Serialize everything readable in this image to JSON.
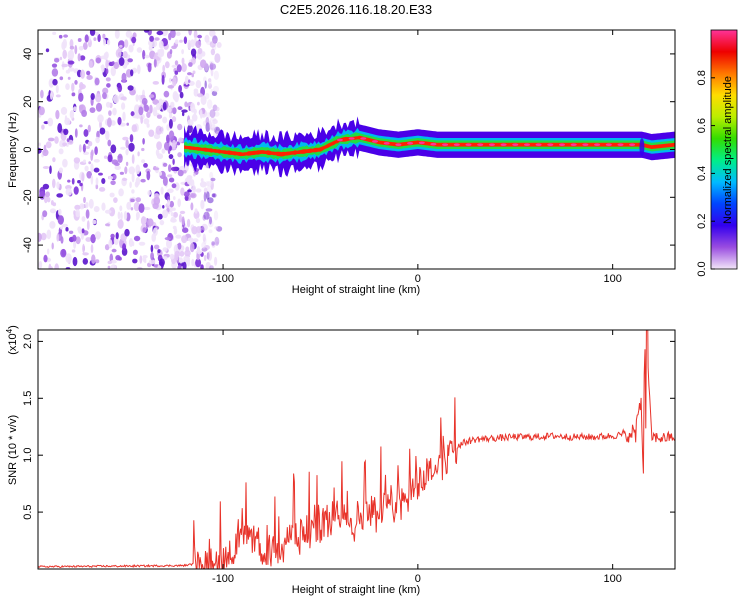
{
  "title": "C2E5.2026.116.18.20.E33",
  "chart_data": [
    {
      "type": "heatmap",
      "name": "spectrogram",
      "xlabel": "Height of straight line (km)",
      "ylabel": "Frequency (Hz)",
      "xlim": [
        -195,
        132
      ],
      "ylim": [
        -50,
        50
      ],
      "x_ticks": [
        "-100",
        "0",
        "100"
      ],
      "x_tick_values": [
        -100,
        0,
        100
      ],
      "y_ticks": [
        "40",
        "20",
        "0",
        "-20",
        "-40"
      ],
      "y_tick_values": [
        40,
        20,
        0,
        -20,
        -40
      ],
      "noise_region_x": [
        -195,
        -110
      ],
      "signal_line": {
        "x": [
          -120,
          -110,
          -100,
          -90,
          -80,
          -70,
          -60,
          -50,
          -40,
          -30,
          -20,
          -10,
          0,
          10,
          20,
          40,
          60,
          80,
          100,
          115,
          120,
          132
        ],
        "freq_hz": [
          1,
          0,
          -1,
          -2,
          -1,
          -2,
          -1,
          0,
          4,
          5,
          3,
          2,
          3,
          2,
          2,
          2,
          2,
          2,
          2,
          2,
          1,
          2
        ]
      },
      "colorbar": {
        "label": "Normalized spectral amplitude",
        "range": [
          0.0,
          1.0
        ],
        "ticks": [
          "0.0",
          "0.2",
          "0.4",
          "0.6",
          "0.8"
        ],
        "tick_values": [
          0.0,
          0.2,
          0.4,
          0.6,
          0.8
        ],
        "colors": [
          "#f2e6f8",
          "#9a4de0",
          "#3300ee",
          "#0044ff",
          "#00bbff",
          "#00ee88",
          "#33dd00",
          "#bbee00",
          "#ffdd00",
          "#ff7700",
          "#ee0000",
          "#ff3399"
        ]
      }
    },
    {
      "type": "line",
      "name": "snr",
      "xlabel": "Height of straight line (km)",
      "ylabel": "SNR (10 * v/v)",
      "y_multiplier": "(x10",
      "y_multiplier_exp": "4",
      "y_multiplier_close": ")",
      "xlim": [
        -195,
        132
      ],
      "ylim": [
        0,
        2.1
      ],
      "x_ticks": [
        "-100",
        "0",
        "100"
      ],
      "x_tick_values": [
        -100,
        0,
        100
      ],
      "y_ticks": [
        "0.5",
        "1.0",
        "1.5",
        "2.0"
      ],
      "y_tick_values": [
        0.5,
        1.0,
        1.5,
        2.0
      ],
      "line_color": "#e8332a",
      "series": [
        {
          "name": "SNR",
          "x": [
            -195,
            -120,
            -110,
            -100,
            -95,
            -90,
            -85,
            -80,
            -75,
            -70,
            -65,
            -60,
            -55,
            -50,
            -45,
            -40,
            -35,
            -30,
            -25,
            -20,
            -15,
            -10,
            -5,
            0,
            5,
            10,
            15,
            20,
            25,
            30,
            40,
            50,
            60,
            70,
            80,
            90,
            100,
            105,
            110,
            112,
            114,
            115,
            116,
            118,
            120,
            125,
            132
          ],
          "y": [
            0.02,
            0.03,
            0.06,
            0.1,
            0.18,
            0.22,
            0.26,
            0.2,
            0.16,
            0.2,
            0.3,
            0.28,
            0.35,
            0.4,
            0.45,
            0.5,
            0.4,
            0.45,
            0.55,
            0.45,
            0.55,
            0.6,
            0.7,
            0.75,
            0.85,
            0.9,
            1.0,
            1.08,
            1.12,
            1.14,
            1.15,
            1.16,
            1.16,
            1.17,
            1.16,
            1.16,
            1.17,
            1.18,
            1.15,
            1.3,
            1.5,
            1.2,
            0.7,
            1.8,
            1.16,
            1.15,
            1.16
          ]
        }
      ]
    }
  ]
}
